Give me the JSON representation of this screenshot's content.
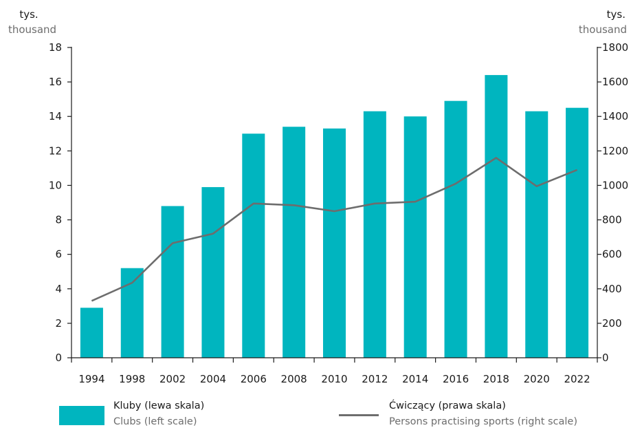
{
  "colors": {
    "bar": "#00b5bf",
    "line": "#6d6d6d",
    "axis": "#1a1a1a",
    "english_text": "#6d6d6d"
  },
  "units": {
    "left_pl": "tys.",
    "left_en": "thousand",
    "right_pl": "tys.",
    "right_en": "thousand"
  },
  "legend": {
    "bar_pl": "Kluby (lewa skala)",
    "bar_en": "Clubs (left scale)",
    "line_pl": "Ćwiczący (prawa skala)",
    "line_en": "Persons practising sports (right scale)"
  },
  "chart_data": {
    "type": "bar",
    "categories": [
      "1994",
      "1998",
      "2002",
      "2004",
      "2006",
      "2008",
      "2010",
      "2012",
      "2014",
      "2016",
      "2018",
      "2020",
      "2022"
    ],
    "series": [
      {
        "name": "Kluby (lewa skala)",
        "type": "bar",
        "axis": "left",
        "values": [
          2.9,
          5.2,
          8.8,
          9.9,
          13.0,
          13.4,
          13.3,
          14.3,
          14.0,
          14.9,
          16.4,
          14.3,
          14.5
        ]
      },
      {
        "name": "Ćwiczący (prawa skala)",
        "type": "line",
        "axis": "right",
        "values": [
          330,
          435,
          665,
          720,
          895,
          885,
          850,
          895,
          905,
          1010,
          1160,
          995,
          1090
        ]
      }
    ],
    "y_left": {
      "min": 0,
      "max": 18,
      "ticks": [
        0,
        2,
        4,
        6,
        8,
        10,
        12,
        14,
        16,
        18
      ]
    },
    "y_right": {
      "min": 0,
      "max": 1800,
      "ticks": [
        0,
        200,
        400,
        600,
        800,
        1000,
        1200,
        1400,
        1600,
        1800
      ]
    },
    "grid": false,
    "legend_position": "bottom"
  }
}
